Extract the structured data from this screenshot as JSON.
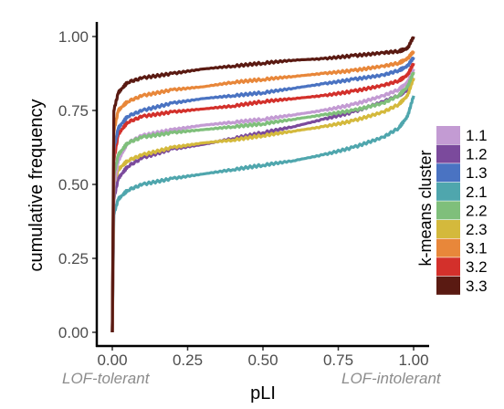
{
  "chart_data": {
    "type": "line",
    "xlabel": "pLI",
    "ylabel": "cumulative frequency",
    "xlim": [
      0,
      1
    ],
    "ylim": [
      0,
      1
    ],
    "x_ticks": [
      "0.00",
      "0.25",
      "0.50",
      "0.75",
      "1.00"
    ],
    "y_ticks": [
      "0.00",
      "0.25",
      "0.50",
      "0.75",
      "1.00"
    ],
    "grid": false,
    "legend_title": "k-means cluster",
    "legend_position": "right",
    "annotations": {
      "left": "LOF-tolerant",
      "right": "LOF-intolerant"
    },
    "series": [
      {
        "name": "1.1",
        "color": "#c39bd3",
        "x": [
          0,
          0.005,
          0.02,
          0.05,
          0.1,
          0.2,
          0.3,
          0.4,
          0.5,
          0.6,
          0.7,
          0.8,
          0.9,
          0.95,
          0.98,
          1.0
        ],
        "y": [
          0,
          0.49,
          0.58,
          0.64,
          0.665,
          0.685,
          0.7,
          0.71,
          0.72,
          0.735,
          0.75,
          0.77,
          0.8,
          0.82,
          0.845,
          0.89
        ]
      },
      {
        "name": "1.2",
        "color": "#7b4a9c",
        "x": [
          0,
          0.005,
          0.02,
          0.05,
          0.1,
          0.2,
          0.3,
          0.4,
          0.5,
          0.6,
          0.7,
          0.8,
          0.9,
          0.95,
          0.98,
          1.0
        ],
        "y": [
          0,
          0.45,
          0.52,
          0.56,
          0.59,
          0.62,
          0.635,
          0.655,
          0.675,
          0.695,
          0.72,
          0.745,
          0.78,
          0.8,
          0.82,
          0.86
        ]
      },
      {
        "name": "1.3",
        "color": "#4a73c2",
        "x": [
          0,
          0.005,
          0.02,
          0.05,
          0.1,
          0.2,
          0.3,
          0.4,
          0.5,
          0.6,
          0.7,
          0.8,
          0.9,
          0.95,
          0.98,
          1.0
        ],
        "y": [
          0,
          0.62,
          0.69,
          0.73,
          0.75,
          0.775,
          0.79,
          0.8,
          0.81,
          0.825,
          0.84,
          0.855,
          0.87,
          0.885,
          0.9,
          0.93
        ]
      },
      {
        "name": "2.1",
        "color": "#4fa6ad",
        "x": [
          0,
          0.005,
          0.02,
          0.05,
          0.1,
          0.2,
          0.3,
          0.4,
          0.5,
          0.6,
          0.7,
          0.8,
          0.9,
          0.95,
          0.98,
          1.0
        ],
        "y": [
          0,
          0.4,
          0.45,
          0.48,
          0.5,
          0.52,
          0.535,
          0.55,
          0.565,
          0.58,
          0.6,
          0.625,
          0.66,
          0.69,
          0.73,
          0.8
        ]
      },
      {
        "name": "2.2",
        "color": "#7fbf7b",
        "x": [
          0,
          0.005,
          0.02,
          0.05,
          0.1,
          0.2,
          0.3,
          0.4,
          0.5,
          0.6,
          0.7,
          0.8,
          0.9,
          0.95,
          0.98,
          1.0
        ],
        "y": [
          0,
          0.53,
          0.6,
          0.64,
          0.66,
          0.675,
          0.685,
          0.695,
          0.705,
          0.72,
          0.735,
          0.75,
          0.775,
          0.8,
          0.83,
          0.88
        ]
      },
      {
        "name": "2.3",
        "color": "#d4b93c",
        "x": [
          0,
          0.005,
          0.02,
          0.05,
          0.1,
          0.2,
          0.3,
          0.4,
          0.5,
          0.6,
          0.7,
          0.8,
          0.9,
          0.95,
          0.98,
          1.0
        ],
        "y": [
          0,
          0.5,
          0.55,
          0.58,
          0.6,
          0.625,
          0.64,
          0.65,
          0.665,
          0.68,
          0.695,
          0.715,
          0.745,
          0.77,
          0.8,
          0.86
        ]
      },
      {
        "name": "3.1",
        "color": "#e8873a",
        "x": [
          0,
          0.005,
          0.02,
          0.05,
          0.1,
          0.2,
          0.3,
          0.4,
          0.5,
          0.6,
          0.7,
          0.8,
          0.9,
          0.95,
          0.98,
          1.0
        ],
        "y": [
          0,
          0.68,
          0.75,
          0.78,
          0.8,
          0.82,
          0.83,
          0.845,
          0.855,
          0.865,
          0.875,
          0.885,
          0.9,
          0.91,
          0.925,
          0.95
        ]
      },
      {
        "name": "3.2",
        "color": "#d3302b",
        "x": [
          0,
          0.005,
          0.02,
          0.05,
          0.1,
          0.2,
          0.3,
          0.4,
          0.5,
          0.6,
          0.7,
          0.8,
          0.9,
          0.95,
          0.98,
          1.0
        ],
        "y": [
          0,
          0.58,
          0.67,
          0.71,
          0.73,
          0.745,
          0.755,
          0.765,
          0.78,
          0.79,
          0.8,
          0.815,
          0.835,
          0.85,
          0.87,
          0.91
        ]
      },
      {
        "name": "3.3",
        "color": "#5a1a12",
        "x": [
          0,
          0.005,
          0.02,
          0.05,
          0.1,
          0.2,
          0.3,
          0.4,
          0.5,
          0.6,
          0.7,
          0.8,
          0.9,
          0.95,
          0.98,
          1.0
        ],
        "y": [
          0,
          0.75,
          0.81,
          0.845,
          0.86,
          0.875,
          0.89,
          0.9,
          0.91,
          0.92,
          0.925,
          0.935,
          0.945,
          0.95,
          0.96,
          1.0
        ]
      }
    ]
  }
}
